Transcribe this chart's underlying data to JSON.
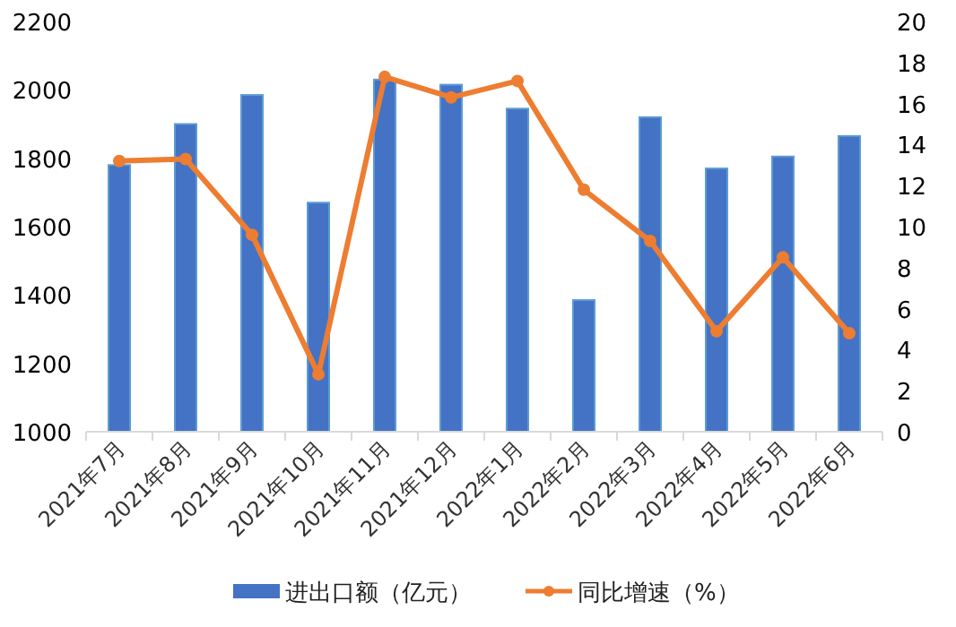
{
  "chart_data": {
    "type": "bar",
    "categories": [
      "2021年7月",
      "2021年8月",
      "2021年9月",
      "2021年10月",
      "2021年11月",
      "2021年12月",
      "2022年1月",
      "2022年2月",
      "2022年3月",
      "2022年4月",
      "2022年5月",
      "2022年6月"
    ],
    "series": [
      {
        "name": "进出口额（亿元）",
        "color": "#4472c4",
        "values": [
          1780,
          1900,
          1985,
          1670,
          2030,
          2015,
          1945,
          1385,
          1920,
          1770,
          1805,
          1865
        ]
      },
      {
        "name": "同比增速（%）",
        "type": "line",
        "axis": "y2",
        "color": "#ed7d31",
        "values": [
          13.2,
          13.3,
          9.6,
          2.8,
          17.3,
          16.3,
          17.1,
          11.8,
          9.3,
          4.9,
          8.5,
          4.8
        ]
      }
    ],
    "ylim": [
      1000,
      2200
    ],
    "yticks": [
      1000,
      1200,
      1400,
      1600,
      1800,
      2000,
      2200
    ],
    "y2lim": [
      0,
      20
    ],
    "y2ticks": [
      0,
      2,
      4,
      6,
      8,
      10,
      12,
      14,
      16,
      18,
      20
    ],
    "legend": "bottom",
    "marker": "circle",
    "grid": false
  }
}
